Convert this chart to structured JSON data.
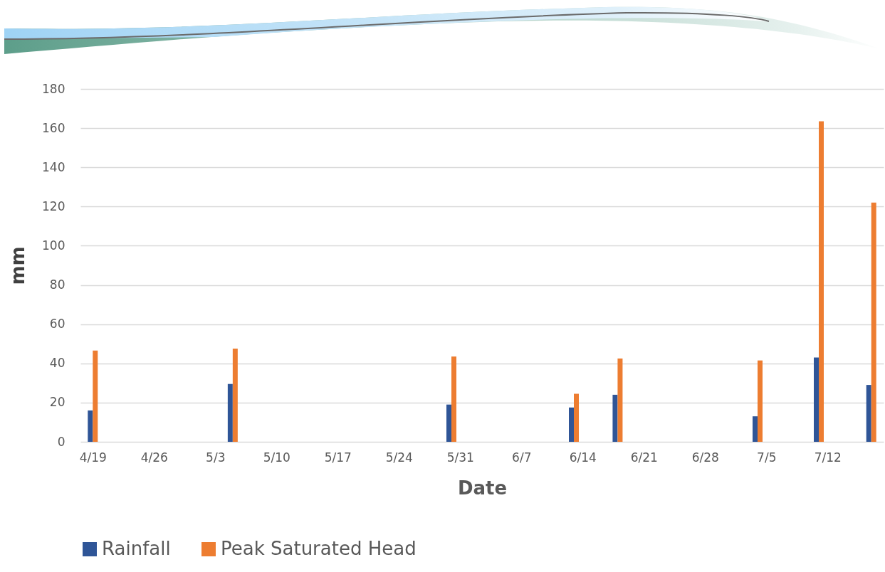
{
  "chart_data": {
    "type": "bar",
    "xlabel": "Date",
    "ylabel": "mm",
    "x": [
      "--04-19",
      "--05-05",
      "--05-30",
      "--06-13",
      "--06-18",
      "--07-04",
      "--07-11",
      "--07-17"
    ],
    "series": [
      {
        "name": "Rainfall",
        "color": "#2f5597",
        "values": [
          16,
          29.5,
          19,
          17.5,
          24,
          13,
          43,
          29
        ]
      },
      {
        "name": "Peak Saturated Head",
        "color": "#ed7d31",
        "values": [
          46.5,
          47.5,
          43.5,
          24.5,
          42.5,
          41.5,
          163.5,
          122
        ]
      }
    ],
    "xlim": [
      "--04-18",
      "--07-18"
    ],
    "xticks": [
      {
        "value": "--04-19",
        "label": "4/19"
      },
      {
        "value": "--04-26",
        "label": "4/26"
      },
      {
        "value": "--05-03",
        "label": "5/3"
      },
      {
        "value": "--05-10",
        "label": "5/10"
      },
      {
        "value": "--05-17",
        "label": "5/17"
      },
      {
        "value": "--05-24",
        "label": "5/24"
      },
      {
        "value": "--05-31",
        "label": "5/31"
      },
      {
        "value": "--06-07",
        "label": "6/7"
      },
      {
        "value": "--06-14",
        "label": "6/14"
      },
      {
        "value": "--06-21",
        "label": "6/21"
      },
      {
        "value": "--06-28",
        "label": "6/28"
      },
      {
        "value": "--07-05",
        "label": "7/5"
      },
      {
        "value": "--07-12",
        "label": "7/12"
      }
    ],
    "ylim": [
      0,
      180
    ],
    "yticks": [
      0,
      20,
      40,
      60,
      80,
      100,
      120,
      140,
      160,
      180
    ],
    "grid": "y",
    "legend": "bottom"
  }
}
